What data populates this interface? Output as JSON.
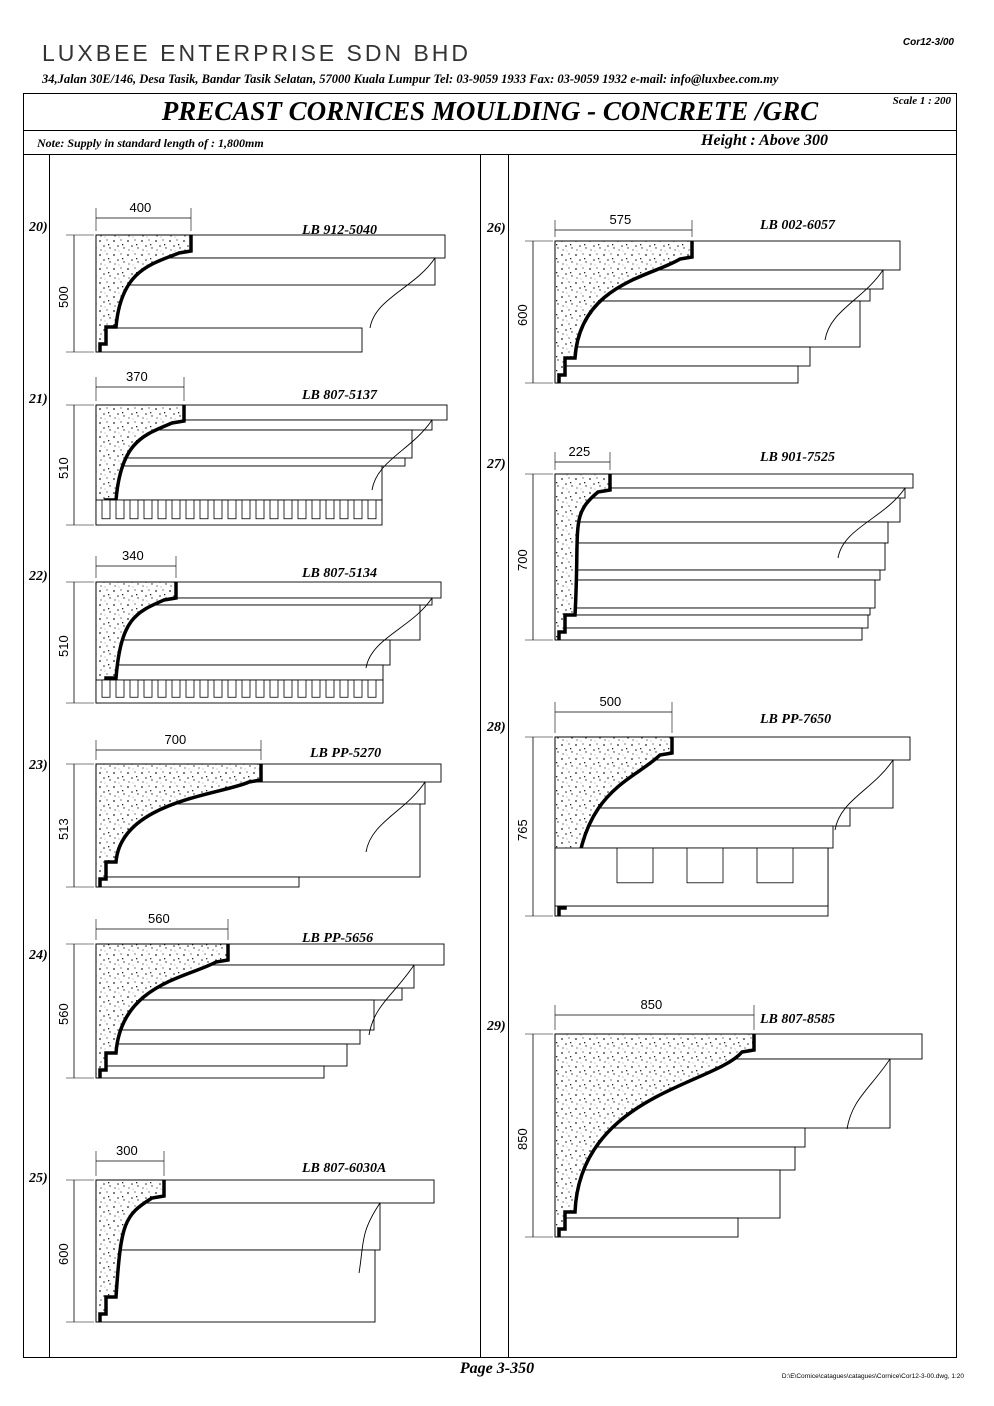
{
  "header": {
    "company": "LUXBEE ENTERPRISE SDN BHD",
    "address": "34,Jalan 30E/146, Desa Tasik, Bandar Tasik Selatan, 57000 Kuala Lumpur   Tel: 03-9059 1933   Fax: 03-9059 1932   e-mail: info@luxbee.com.my",
    "doc_ref": "Cor12-3/00"
  },
  "title": "PRECAST CORNICES MOULDING - CONCRETE /GRC",
  "scale": "Scale 1 : 200",
  "note": "Note: Supply in standard length of : 1,800mm",
  "height_label": "Height : Above 300",
  "mouldings": [
    {
      "num": "20)",
      "code": "LB 912-5040",
      "width": "400",
      "height": "500"
    },
    {
      "num": "21)",
      "code": "LB 807-5137",
      "width": "370",
      "height": "510"
    },
    {
      "num": "22)",
      "code": "LB 807-5134",
      "width": "340",
      "height": "510"
    },
    {
      "num": "23)",
      "code": "LB PP-5270",
      "width": "700",
      "height": "513"
    },
    {
      "num": "24)",
      "code": "LB PP-5656",
      "width": "560",
      "height": "560"
    },
    {
      "num": "25)",
      "code": "LB 807-6030A",
      "width": "300",
      "height": "600"
    },
    {
      "num": "26)",
      "code": "LB 002-6057",
      "width": "575",
      "height": "600"
    },
    {
      "num": "27)",
      "code": "LB 901-7525",
      "width": "225",
      "height": "700"
    },
    {
      "num": "28)",
      "code": "LB PP-7650",
      "width": "500",
      "height": "765"
    },
    {
      "num": "29)",
      "code": "LB 807-8585",
      "width": "850",
      "height": "850"
    }
  ],
  "footer": {
    "page": "Page 3-350",
    "path": "D:\\E\\Cornice\\catagues\\catagues\\Cornice\\Cor12-3-00.dwg, 1:20"
  }
}
